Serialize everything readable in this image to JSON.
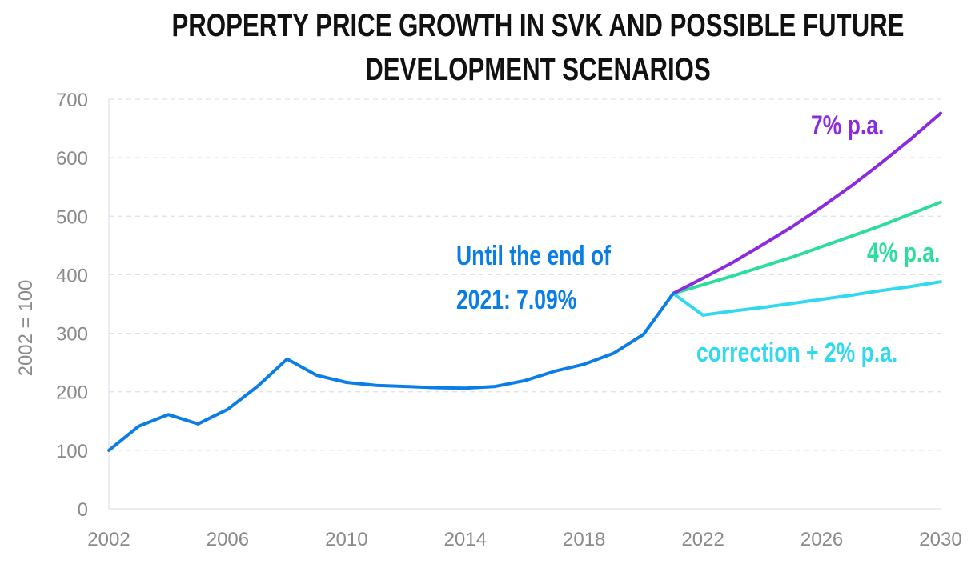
{
  "chart_data": {
    "type": "line",
    "title": [
      "PROPERTY PRICE GROWTH IN SVK AND POSSIBLE FUTURE",
      "DEVELOPMENT SCENARIOS"
    ],
    "xlabel": "",
    "ylabel": "2002 = 100",
    "xlim": [
      2002,
      2030
    ],
    "ylim": [
      0,
      700
    ],
    "xticks": [
      "2002",
      "2006",
      "2010",
      "2014",
      "2018",
      "2022",
      "2026",
      "2030"
    ],
    "yticks": [
      "0",
      "100",
      "200",
      "300",
      "400",
      "500",
      "600",
      "700"
    ],
    "grid": "horizontal dashed",
    "series": [
      {
        "color": "#0b7de6",
        "x": [
          2002,
          2003,
          2004,
          2005,
          2006,
          2007,
          2008,
          2009,
          2010,
          2011,
          2012,
          2013,
          2014,
          2015,
          2016,
          2017,
          2018,
          2019,
          2020,
          2021
        ],
        "y": [
          100,
          141,
          161,
          145,
          170,
          209,
          256,
          228,
          216,
          211,
          209,
          207,
          206,
          209,
          219,
          235,
          247,
          266,
          298,
          368
        ]
      },
      {
        "name": "7% p.a.",
        "color": "#8a2be2",
        "x": [
          2021,
          2022,
          2023,
          2024,
          2025,
          2026,
          2027,
          2028,
          2029,
          2030
        ],
        "y": [
          368,
          394,
          421,
          451,
          482,
          516,
          552,
          591,
          632,
          676
        ]
      },
      {
        "name": "4% p.a.",
        "color": "#2edc9c",
        "x": [
          2021,
          2022,
          2023,
          2024,
          2025,
          2026,
          2027,
          2028,
          2029,
          2030
        ],
        "y": [
          368,
          383,
          398,
          414,
          430,
          448,
          466,
          484,
          504,
          524
        ]
      },
      {
        "name": "correction + 2% p.a.",
        "color": "#30d8f0",
        "x": [
          2021,
          2022,
          2023,
          2024,
          2025,
          2026,
          2027,
          2028,
          2029,
          2030
        ],
        "y": [
          368,
          331,
          338,
          344,
          351,
          358,
          365,
          373,
          380,
          388
        ]
      }
    ],
    "annotations": [
      "Until the end of",
      "2021: 7.09%"
    ]
  }
}
